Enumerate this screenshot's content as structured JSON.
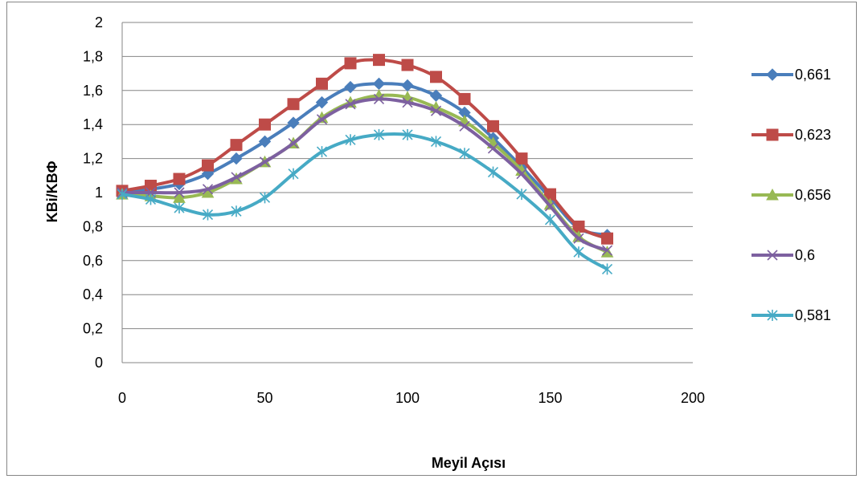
{
  "chart_data": {
    "type": "line",
    "title": "",
    "xlabel": "Meyil Açısı",
    "ylabel": "KBi/KBΦ",
    "xlim": [
      0,
      200
    ],
    "ylim": [
      0,
      2
    ],
    "x_ticks": [
      0,
      50,
      100,
      150,
      200
    ],
    "x_tick_labels": [
      "0",
      "50",
      "100",
      "150",
      "200"
    ],
    "y_ticks": [
      0,
      0.2,
      0.4,
      0.6,
      0.8,
      1,
      1.2,
      1.4,
      1.6,
      1.8,
      2
    ],
    "y_tick_labels": [
      "0",
      "0,2",
      "0,4",
      "0,6",
      "0,8",
      "1",
      "1,2",
      "1,4",
      "1,6",
      "1,8",
      "2"
    ],
    "grid": "horizontal",
    "legend_position": "right",
    "x": [
      0,
      10,
      20,
      30,
      40,
      50,
      60,
      70,
      80,
      90,
      100,
      110,
      120,
      130,
      140,
      150,
      160,
      170
    ],
    "series": [
      {
        "name": "0,661",
        "color": "#4A7EBB",
        "marker": "diamond",
        "values": [
          1.0,
          1.02,
          1.05,
          1.11,
          1.2,
          1.3,
          1.41,
          1.53,
          1.62,
          1.64,
          1.63,
          1.57,
          1.47,
          1.32,
          1.15,
          0.97,
          0.79,
          0.75
        ]
      },
      {
        "name": "0,623",
        "color": "#BE4B48",
        "marker": "square",
        "values": [
          1.01,
          1.04,
          1.08,
          1.16,
          1.28,
          1.4,
          1.52,
          1.64,
          1.76,
          1.78,
          1.75,
          1.68,
          1.55,
          1.39,
          1.2,
          0.99,
          0.8,
          0.73
        ]
      },
      {
        "name": "0,656",
        "color": "#98B954",
        "marker": "triangle",
        "values": [
          0.99,
          0.98,
          0.97,
          1.0,
          1.08,
          1.18,
          1.29,
          1.44,
          1.53,
          1.57,
          1.56,
          1.5,
          1.42,
          1.29,
          1.13,
          0.93,
          0.74,
          0.65
        ]
      },
      {
        "name": "0,6",
        "color": "#7D60A0",
        "marker": "x",
        "values": [
          1.0,
          1.0,
          1.0,
          1.02,
          1.09,
          1.18,
          1.29,
          1.43,
          1.52,
          1.55,
          1.53,
          1.48,
          1.39,
          1.26,
          1.11,
          0.92,
          0.73,
          0.66
        ]
      },
      {
        "name": "0,581",
        "color": "#46AAC5",
        "marker": "star",
        "values": [
          0.99,
          0.96,
          0.91,
          0.87,
          0.89,
          0.97,
          1.11,
          1.24,
          1.31,
          1.34,
          1.34,
          1.3,
          1.23,
          1.12,
          0.99,
          0.84,
          0.65,
          0.55
        ]
      }
    ]
  }
}
